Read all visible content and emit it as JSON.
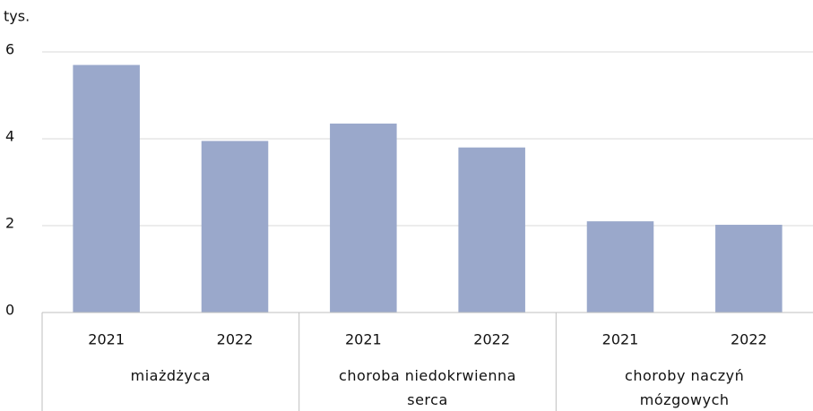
{
  "chart_data": {
    "type": "bar",
    "y_unit": "tys.",
    "categories": [
      "2021",
      "2022",
      "2021",
      "2022",
      "2021",
      "2022"
    ],
    "groups": [
      "miażdżyca",
      "choroba niedokrwienna serca",
      "choroby naczyń mózgowych"
    ],
    "values": [
      5.7,
      3.95,
      4.35,
      3.8,
      2.1,
      2.02
    ],
    "color": "#9aa8cb",
    "ylim": [
      0,
      6
    ],
    "yticks": [
      0,
      2,
      4,
      6
    ],
    "grid": true
  }
}
